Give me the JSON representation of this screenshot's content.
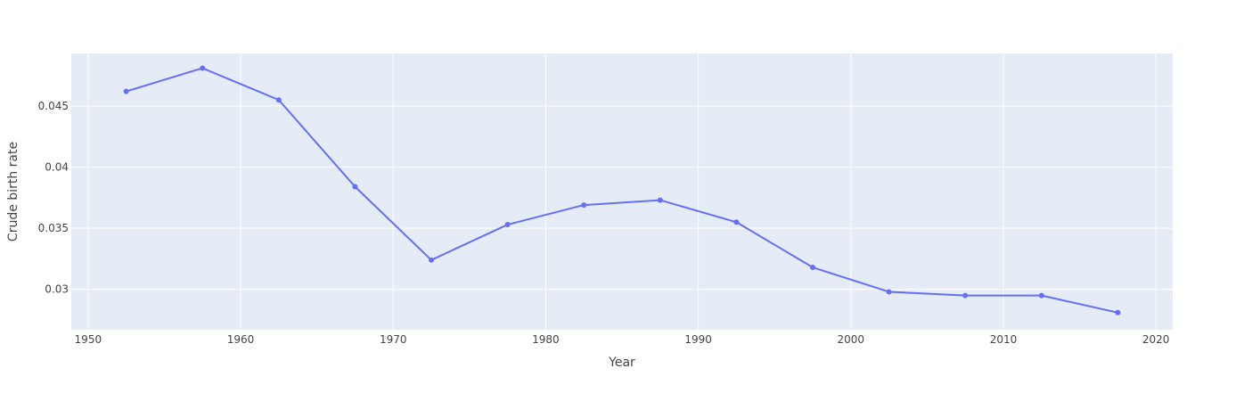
{
  "chart_data": {
    "type": "line",
    "title": "",
    "xlabel": "Year",
    "ylabel": "Crude birth rate",
    "xlim": [
      1948.9,
      2021.1
    ],
    "ylim": [
      0.0267,
      0.0493
    ],
    "x_ticks": [
      1950,
      1960,
      1970,
      1980,
      1990,
      2000,
      2010,
      2020
    ],
    "y_ticks": [
      0.03,
      0.035,
      0.04,
      0.045
    ],
    "y_tick_labels": [
      "0.03",
      "0.035",
      "0.04",
      "0.045"
    ],
    "grid": true,
    "colors": {
      "plot_bg": "#e5ecf6",
      "grid": "#ffffff",
      "line": "#636efa",
      "text": "#444444"
    },
    "series": [
      {
        "x": [
          1952.5,
          1957.5,
          1962.5,
          1967.5,
          1972.5,
          1977.5,
          1982.5,
          1987.5,
          1992.5,
          1997.5,
          2002.5,
          2007.5,
          2012.5,
          2017.5
        ],
        "y": [
          0.0462,
          0.0481,
          0.0455,
          0.0384,
          0.0324,
          0.0353,
          0.0369,
          0.0373,
          0.0355,
          0.0318,
          0.0298,
          0.0295,
          0.0295,
          0.0281
        ]
      }
    ]
  }
}
